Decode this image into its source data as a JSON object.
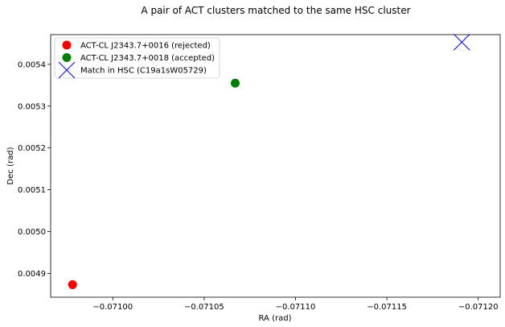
{
  "chart_data": {
    "type": "scatter",
    "title": "A pair of ACT clusters matched to the same HSC cluster",
    "xlabel": "RA (rad)",
    "ylabel": "Dec (rad)",
    "xlim": [
      -0.070966,
      -0.071212
    ],
    "ylim": [
      0.004843,
      0.005471
    ],
    "x_ticks": [
      -0.071,
      -0.07105,
      -0.0711,
      -0.07115,
      -0.0712
    ],
    "x_tick_labels": [
      "−0.07100",
      "−0.07105",
      "−0.07110",
      "−0.07115",
      "−0.07120"
    ],
    "y_ticks": [
      0.0049,
      0.005,
      0.0051,
      0.0052,
      0.0053,
      0.0054
    ],
    "y_tick_labels": [
      "0.0049",
      "0.0050",
      "0.0051",
      "0.0052",
      "0.0053",
      "0.0054"
    ],
    "grid": false,
    "legend_position": "top-left",
    "series": [
      {
        "name": "ACT-CL J2343.7+0016 (rejected)",
        "marker": "circle",
        "color": "#ff0000",
        "points": [
          {
            "x": -0.070978,
            "y": 0.004873
          }
        ]
      },
      {
        "name": "ACT-CL J2343.7+0018 (accepted)",
        "marker": "circle",
        "color": "#008000",
        "points": [
          {
            "x": -0.071067,
            "y": 0.005355
          }
        ]
      },
      {
        "name": "Match in HSC (C19a1sW05729)",
        "marker": "x",
        "color": "#0000ff",
        "points": [
          {
            "x": -0.071191,
            "y": 0.005453
          }
        ]
      }
    ]
  }
}
